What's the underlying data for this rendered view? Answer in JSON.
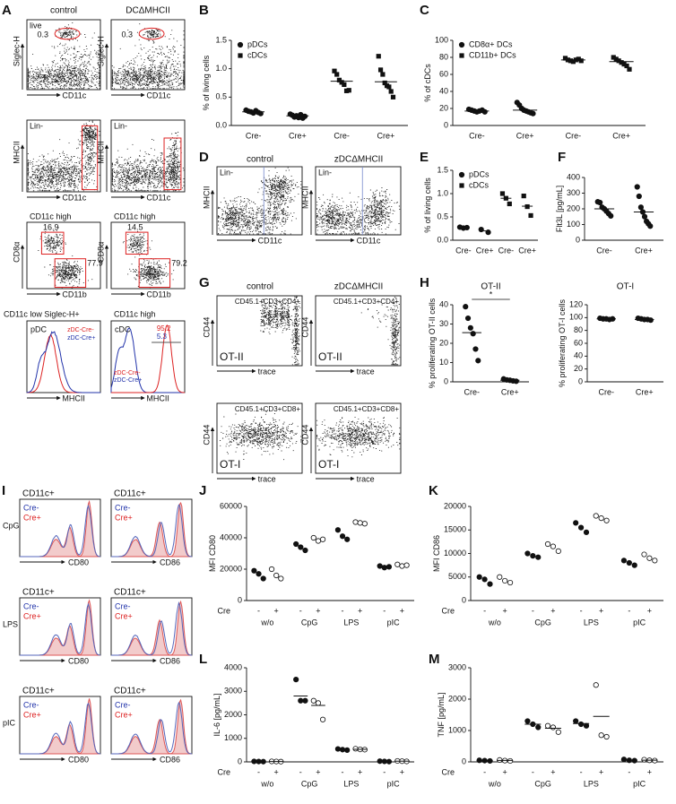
{
  "panel_letters": [
    "A",
    "B",
    "C",
    "D",
    "E",
    "F",
    "G",
    "H",
    "I",
    "J",
    "K",
    "L",
    "M"
  ],
  "panel_a": {
    "headers": [
      "control",
      "DCΔMHCII"
    ],
    "rows": [
      {
        "gates": [
          "live"
        ],
        "y_axis": "Siglec-H",
        "x_axis": "CD11c",
        "values": [
          "0.3",
          "0.3"
        ]
      },
      {
        "gates": [
          "Lin-",
          "Lin-"
        ],
        "y_axis": "MHCII",
        "x_axis": "CD11c"
      },
      {
        "gates": [
          "CD11c high",
          "CD11c high"
        ],
        "y_axis": "CD8α",
        "x_axis": "CD11b",
        "values": [
          [
            "16.9",
            "77.9"
          ],
          [
            "14.5",
            "79.2"
          ]
        ]
      },
      {
        "gates": [
          "CD11c low Siglec-H+",
          "CD11c high"
        ],
        "x_axis": "MHCII",
        "populations": [
          "pDC",
          "cDC"
        ],
        "values": [
          "95.2",
          "5.3"
        ],
        "legend": [
          "zDC-Cre-",
          "zDC-Cre+"
        ]
      }
    ]
  },
  "panel_d": {
    "headers": [
      "control",
      "zDCΔMHCII"
    ],
    "gate": "Lin-",
    "y_axis": "MHCII",
    "x_axis": "CD11c"
  },
  "panel_g": {
    "headers": [
      "control",
      "zDCΔMHCII"
    ],
    "y_axis": "CD44",
    "x_axis": "trace",
    "rows": [
      {
        "gate": "CD45.1+CD3+CD4+",
        "label": "OT-II"
      },
      {
        "gate": "CD45.1+CD3+CD8+",
        "label": "OT-I"
      }
    ]
  },
  "panel_i": {
    "gate": "CD11c+",
    "legend": [
      "Cre-",
      "Cre+"
    ],
    "x_axes": [
      "CD80",
      "CD86"
    ],
    "stimuli": [
      "CpG",
      "LPS",
      "pIC"
    ]
  },
  "chart_data": [
    {
      "type": "dot",
      "ylabel": "% of living cells",
      "categories": [
        "Cre-",
        "Cre+",
        "Cre-",
        "Cre+"
      ],
      "legend": "top-left",
      "ylim": [
        0,
        1.5
      ],
      "yticks": [
        {
          "value": 0,
          "label": "0.0"
        },
        0.5,
        {
          "value": 1,
          "label": "1.0"
        },
        1.5
      ],
      "series": [
        {
          "name": "pDCs",
          "marker": "circle",
          "values": [
            [
              0.27,
              0.25,
              0.24,
              0.22,
              0.26,
              0.23,
              0.21
            ],
            [
              0.2,
              0.18,
              0.15,
              0.17,
              0.14,
              0.19,
              0.13,
              0.16
            ],
            null,
            null
          ],
          "means": [
            0.24,
            0.17,
            null,
            null
          ]
        },
        {
          "name": "cDCs",
          "marker": "square",
          "values": [
            null,
            null,
            [
              0.96,
              0.9,
              0.8,
              0.76,
              0.72,
              0.61,
              0.62
            ],
            [
              1.22,
              0.98,
              0.9,
              0.75,
              0.7,
              0.68,
              0.6,
              0.5
            ]
          ],
          "means": [
            null,
            null,
            0.78,
            0.77
          ]
        }
      ]
    },
    {
      "type": "dot",
      "ylabel": "% of cDCs",
      "categories": [
        "Cre-",
        "Cre+",
        "Cre-",
        "Cre+"
      ],
      "legend": "top-left",
      "ylim": [
        0,
        100
      ],
      "yticks": [
        0,
        20,
        40,
        60,
        80,
        100
      ],
      "series": [
        {
          "name": "CD8α+ DCs",
          "marker": "circle",
          "values": [
            [
              19,
              18,
              17,
              16,
              17,
              18,
              16
            ],
            [
              27,
              24,
              20,
              18,
              17,
              16,
              15,
              14
            ],
            null,
            null
          ],
          "means": [
            17,
            18,
            null,
            null
          ]
        },
        {
          "name": "CD11b+ DCs",
          "marker": "square",
          "values": [
            null,
            null,
            [
              79,
              77,
              76,
              75,
              77,
              78,
              76
            ],
            [
              80,
              78,
              76,
              74,
              72,
              70,
              66
            ]
          ],
          "means": [
            null,
            null,
            77,
            75
          ]
        }
      ]
    },
    {
      "type": "dot",
      "ylabel": "% of living cells",
      "categories": [
        "Cre-",
        "Cre+",
        "Cre-",
        "Cre+"
      ],
      "legend": "top-left",
      "ylim": [
        0,
        1.5
      ],
      "yticks": [
        {
          "value": 0,
          "label": "0.0"
        },
        0.5,
        {
          "value": 1,
          "label": "1.0"
        },
        1.5
      ],
      "series": [
        {
          "name": "pDCs",
          "marker": "circle",
          "values": [
            [
              0.28,
              0.26,
              0.27
            ],
            [
              0.23,
              0.17
            ],
            null,
            null
          ],
          "means": [
            0.27,
            0.2,
            null,
            null
          ]
        },
        {
          "name": "cDCs",
          "marker": "square",
          "values": [
            null,
            null,
            [
              1.0,
              0.9,
              0.78
            ],
            [
              0.95,
              0.72,
              0.53
            ]
          ],
          "means": [
            null,
            null,
            0.9,
            0.73
          ]
        }
      ]
    },
    {
      "type": "dot",
      "ylabel": "Flt3L [pg/mL]",
      "categories": [
        "Cre-",
        "Cre+"
      ],
      "ylim": [
        0,
        400
      ],
      "yticks": [
        0,
        100,
        200,
        300,
        400
      ],
      "series": [
        {
          "marker": "circle",
          "values": [
            [
              245,
              240,
              210,
              200,
              185,
              170,
              155
            ],
            [
              340,
              280,
              210,
              180,
              150,
              120,
              105,
              90
            ]
          ],
          "means": [
            200,
            180
          ]
        }
      ]
    },
    {
      "type": "dot",
      "title": "OT-II",
      "ylabel": "% proliferating OT-II cells",
      "categories": [
        "Cre-",
        "Cre+"
      ],
      "annotation": "*",
      "ylim": [
        0,
        40
      ],
      "yticks": [
        0,
        10,
        20,
        30,
        40
      ],
      "series": [
        {
          "marker": "circle",
          "values": [
            [
              39,
              33,
              28,
              25,
              17,
              11
            ],
            [
              1.5,
              1,
              0.8,
              0.5,
              0.3
            ]
          ],
          "means": [
            25.5,
            0.8
          ]
        }
      ]
    },
    {
      "type": "dot",
      "title": "OT-I",
      "ylabel": "% proliferating OT-I cells",
      "categories": [
        "Cre-",
        "Cre+"
      ],
      "ylim": [
        0,
        120
      ],
      "yticks": [
        0,
        20,
        40,
        60,
        80,
        100,
        120
      ],
      "series": [
        {
          "marker": "circle",
          "values": [
            [
              99,
              98,
              98,
              97,
              98
            ],
            [
              99,
              98,
              97,
              97,
              96
            ]
          ],
          "means": [
            98,
            97
          ]
        }
      ]
    },
    {
      "type": "dot",
      "ylabel": "MFI CD80",
      "categories": [
        "w/o",
        "CpG",
        "LPS",
        "pIC"
      ],
      "sublabels": [
        "-",
        "+"
      ],
      "sublabel_title": "Cre",
      "ylim": [
        0,
        60000
      ],
      "yticks": [
        0,
        20000,
        40000,
        60000
      ],
      "series": [
        {
          "marker": "circle",
          "values": [
            [
              19000,
              17000,
              14000
            ],
            [
              36000,
              34000,
              32000
            ],
            [
              45000,
              41000,
              39000
            ],
            [
              22000,
              21000,
              21500
            ]
          ]
        },
        {
          "marker": "circle-open",
          "values": [
            [
              20000,
              16000,
              14000
            ],
            [
              40000,
              38000,
              39000
            ],
            [
              50000,
              49500,
              49000
            ],
            [
              23000,
              22000,
              22500
            ]
          ]
        }
      ]
    },
    {
      "type": "dot",
      "ylabel": "MFI CD86",
      "categories": [
        "w/o",
        "CpG",
        "LPS",
        "pIC"
      ],
      "sublabels": [
        "-",
        "+"
      ],
      "sublabel_title": "Cre",
      "ylim": [
        0,
        20000
      ],
      "yticks": [
        0,
        5000,
        10000,
        15000,
        20000
      ],
      "series": [
        {
          "marker": "circle",
          "values": [
            [
              5000,
              4500,
              3500
            ],
            [
              10000,
              9500,
              9200
            ],
            [
              16500,
              15500,
              14500
            ],
            [
              8500,
              8000,
              7500
            ]
          ]
        },
        {
          "marker": "circle-open",
          "values": [
            [
              5000,
              4200,
              3800
            ],
            [
              12000,
              11500,
              10500
            ],
            [
              18000,
              17500,
              17000
            ],
            [
              9800,
              9000,
              8500
            ]
          ]
        }
      ]
    },
    {
      "type": "dot",
      "ylabel": "IL-6 [pg/mL]",
      "categories": [
        "w/o",
        "CpG",
        "LPS",
        "pIC"
      ],
      "sublabels": [
        "-",
        "+"
      ],
      "sublabel_title": "Cre",
      "ylim": [
        0,
        4000
      ],
      "yticks": [
        0,
        1000,
        2000,
        3000,
        4000
      ],
      "series": [
        {
          "marker": "circle",
          "values": [
            [
              20,
              15,
              10
            ],
            [
              3500,
              2600,
              2600
            ],
            [
              550,
              520,
              500
            ],
            [
              30,
              20,
              10
            ]
          ],
          "means": [
            15,
            2800,
            520,
            20
          ]
        },
        {
          "marker": "circle-open",
          "values": [
            [
              20,
              15,
              10
            ],
            [
              2600,
              2500,
              1800
            ],
            [
              560,
              530,
              520
            ],
            [
              40,
              30,
              20
            ]
          ],
          "means": [
            15,
            2400,
            535,
            30
          ]
        }
      ]
    },
    {
      "type": "dot",
      "ylabel": "TNF [pg/mL]",
      "categories": [
        "w/o",
        "CpG",
        "LPS",
        "pIC"
      ],
      "sublabels": [
        "-",
        "+"
      ],
      "sublabel_title": "Cre",
      "ylim": [
        0,
        3000
      ],
      "yticks": [
        0,
        1000,
        2000,
        3000
      ],
      "series": [
        {
          "marker": "circle",
          "values": [
            [
              50,
              40,
              30
            ],
            [
              1300,
              1200,
              1100
            ],
            [
              1300,
              1200,
              1150
            ],
            [
              80,
              50,
              40
            ]
          ],
          "means": [
            40,
            1200,
            1220,
            55
          ]
        },
        {
          "marker": "circle-open",
          "values": [
            [
              60,
              40,
              30
            ],
            [
              1150,
              1100,
              950
            ],
            [
              2450,
              850,
              800
            ],
            [
              70,
              50,
              40
            ]
          ],
          "means": [
            45,
            1070,
            1450,
            55
          ]
        }
      ]
    }
  ]
}
